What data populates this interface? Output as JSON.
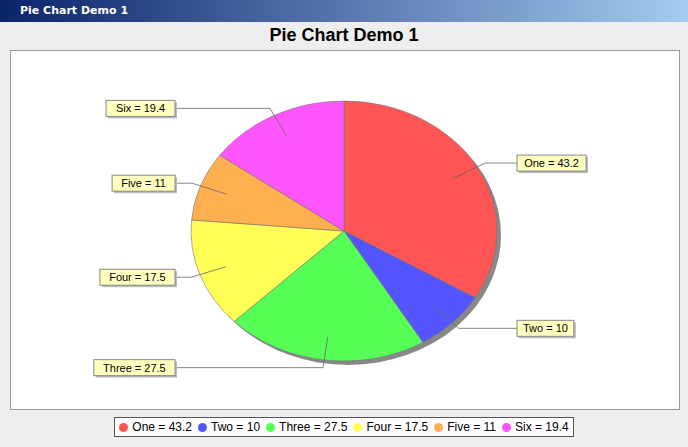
{
  "chart_data": {
    "type": "pie",
    "title": "Pie Chart Demo 1",
    "categories": [
      "One",
      "Two",
      "Three",
      "Four",
      "Five",
      "Six"
    ],
    "values": [
      43.2,
      10,
      27.5,
      17.5,
      11,
      19.4
    ],
    "value_labels": [
      "One = 43.2",
      "Two = 10",
      "Three = 27.5",
      "Four = 17.5",
      "Five = 11",
      "Six = 19.4"
    ],
    "colors": [
      "#ff5555",
      "#5555ff",
      "#55ff55",
      "#ffff55",
      "#ffaf50",
      "#ff55ff"
    ],
    "data_labels": true,
    "legend": "bottom"
  }
}
